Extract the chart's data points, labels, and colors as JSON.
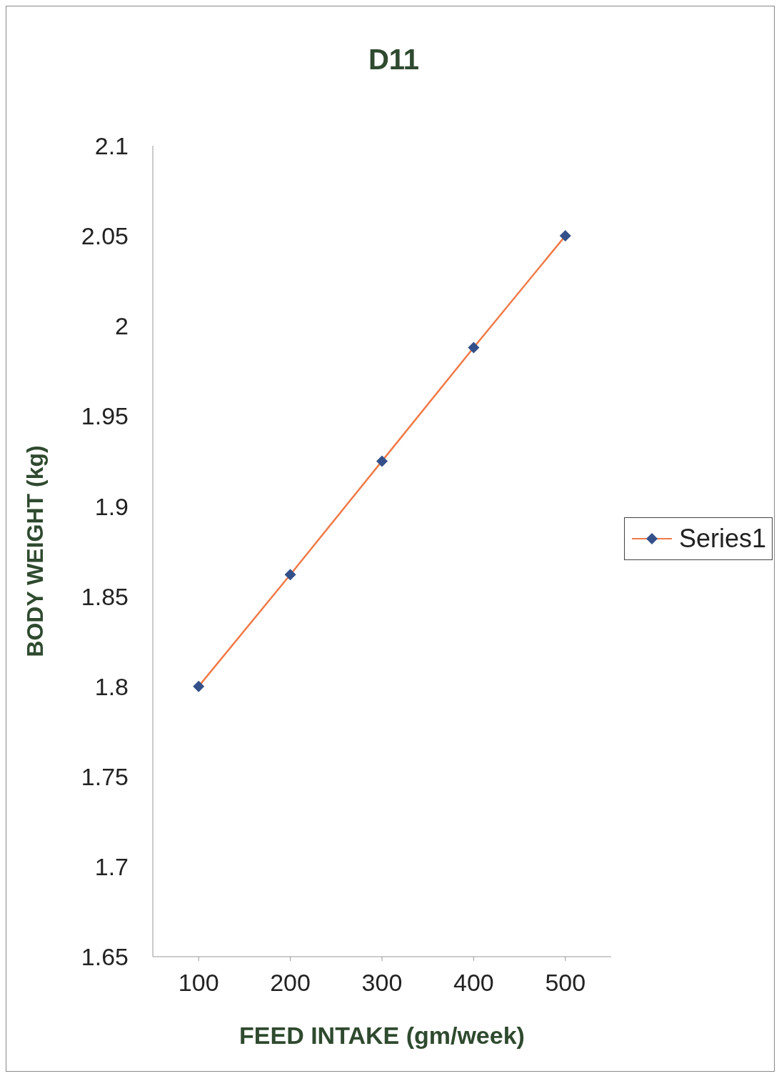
{
  "chart_data": {
    "type": "line",
    "title": "D11",
    "xlabel": "FEED INTAKE (gm/week)",
    "ylabel": "BODY WEIGHT (kg)",
    "categories": [
      "100",
      "200",
      "300",
      "400",
      "500"
    ],
    "series": [
      {
        "name": "Series1",
        "color": "#f07a48",
        "colors": [
          "#34508a",
          "#34508a",
          "#34508a",
          "#34508a",
          "#34508a"
        ],
        "values": [
          1.8,
          1.862,
          1.925,
          1.988,
          2.05
        ]
      }
    ],
    "ylim": [
      1.65,
      2.1
    ],
    "yticks": [
      1.65,
      1.7,
      1.75,
      1.8,
      1.85,
      1.9,
      1.95,
      2,
      2.05,
      2.1
    ],
    "marker": "diamond",
    "legend": "right",
    "grid": false
  }
}
